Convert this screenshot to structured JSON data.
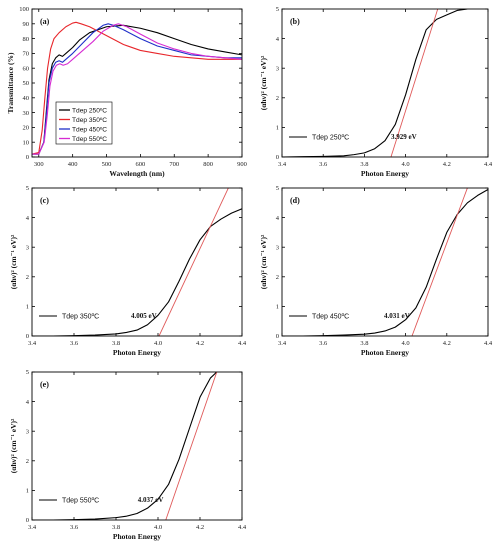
{
  "figure": {
    "background": "#ffffff"
  },
  "chart_data": [
    {
      "panel_label": "(a)",
      "type": "line",
      "xlabel": "Wavelength (nm)",
      "ylabel": "Transmittance (%)",
      "xlim": [
        280,
        900
      ],
      "ylim": [
        0,
        100
      ],
      "xticks": [
        300,
        400,
        500,
        600,
        700,
        800,
        900
      ],
      "yticks": [
        0,
        10,
        20,
        30,
        40,
        50,
        60,
        70,
        80,
        90,
        100
      ],
      "legend_position": "lower-left",
      "series": [
        {
          "name": "Tdep 250ºC",
          "color": "#000000",
          "x": [
            280,
            300,
            315,
            322,
            330,
            340,
            350,
            360,
            370,
            380,
            400,
            420,
            450,
            500,
            550,
            600,
            650,
            700,
            750,
            800,
            850,
            900
          ],
          "y": [
            2,
            2,
            10,
            30,
            52,
            63,
            67,
            69,
            68,
            70,
            74,
            79,
            84,
            88,
            89,
            87,
            84,
            80,
            76,
            73,
            71,
            69
          ]
        },
        {
          "name": "Tdep 350ºC",
          "color": "#e8262b",
          "x": [
            280,
            300,
            310,
            318,
            326,
            335,
            345,
            360,
            380,
            400,
            410,
            425,
            450,
            500,
            550,
            600,
            650,
            700,
            750,
            800,
            850,
            900
          ],
          "y": [
            2,
            3,
            18,
            40,
            60,
            73,
            80,
            84,
            88,
            90.5,
            91,
            90,
            88,
            82,
            76,
            72,
            70,
            68,
            67,
            66,
            66,
            66
          ]
        },
        {
          "name": "Tdep 450ºC",
          "color": "#1f2fc9",
          "x": [
            280,
            300,
            315,
            323,
            330,
            340,
            350,
            360,
            370,
            380,
            400,
            430,
            460,
            490,
            505,
            520,
            550,
            600,
            650,
            700,
            750,
            800,
            850,
            900
          ],
          "y": [
            2,
            2,
            10,
            30,
            50,
            60,
            64,
            65,
            64,
            66,
            70,
            77,
            84,
            89,
            90,
            89,
            86,
            80,
            75,
            72,
            69,
            68,
            67,
            67
          ]
        },
        {
          "name": "Tdep 550ºC",
          "color": "#d62bd2",
          "x": [
            280,
            300,
            316,
            325,
            333,
            342,
            352,
            362,
            372,
            385,
            400,
            430,
            460,
            490,
            520,
            535,
            560,
            600,
            650,
            700,
            750,
            800,
            850,
            900
          ],
          "y": [
            2,
            2,
            10,
            28,
            48,
            58,
            62,
            63,
            62,
            63,
            66,
            72,
            78,
            85,
            89,
            90,
            88,
            83,
            77,
            73,
            70,
            68,
            67,
            66
          ]
        }
      ]
    },
    {
      "panel_label": "(b)",
      "type": "line",
      "xlabel": "Photon Energy",
      "ylabel": "(αhν)² (cm⁻¹ eV)²",
      "xlim": [
        3.4,
        4.4
      ],
      "ylim": [
        0,
        5
      ],
      "xticks": [
        3.4,
        3.6,
        3.8,
        4.0,
        4.2,
        4.4
      ],
      "yticks": [
        0,
        1,
        2,
        3,
        4,
        5
      ],
      "legend_position": "lower-left",
      "annotation": "3.929 eV",
      "bandgap_eV": 3.929,
      "series": [
        {
          "name": "Tdep 250ºC",
          "color": "#000000",
          "x": [
            3.4,
            3.5,
            3.6,
            3.7,
            3.75,
            3.8,
            3.85,
            3.9,
            3.95,
            4.0,
            4.05,
            4.1,
            4.15,
            4.2,
            4.25,
            4.3
          ],
          "y": [
            0.0,
            0.01,
            0.02,
            0.04,
            0.08,
            0.14,
            0.28,
            0.55,
            1.1,
            2.1,
            3.3,
            4.3,
            4.65,
            4.8,
            4.95,
            5.0
          ]
        },
        {
          "name": "linear fit",
          "color": "#e05a5a",
          "x": [
            3.929,
            4.156
          ],
          "y": [
            0,
            5
          ]
        }
      ]
    },
    {
      "panel_label": "(c)",
      "type": "line",
      "xlabel": "Photon Energy",
      "ylabel": "(αhν)² (cm⁻¹ eV)²",
      "xlim": [
        3.4,
        4.4
      ],
      "ylim": [
        0,
        5
      ],
      "xticks": [
        3.4,
        3.6,
        3.8,
        4.0,
        4.2,
        4.4
      ],
      "yticks": [
        0,
        1,
        2,
        3,
        4,
        5
      ],
      "legend_position": "lower-left",
      "annotation": "4.005 eV",
      "bandgap_eV": 4.005,
      "series": [
        {
          "name": "Tdep 350ºC",
          "color": "#000000",
          "x": [
            3.4,
            3.5,
            3.6,
            3.7,
            3.8,
            3.85,
            3.9,
            3.95,
            4.0,
            4.05,
            4.1,
            4.15,
            4.2,
            4.25,
            4.3,
            4.35,
            4.4
          ],
          "y": [
            0.0,
            0.0,
            0.01,
            0.03,
            0.07,
            0.12,
            0.2,
            0.38,
            0.7,
            1.15,
            1.85,
            2.6,
            3.25,
            3.7,
            3.95,
            4.15,
            4.3
          ]
        },
        {
          "name": "linear fit",
          "color": "#e05a5a",
          "x": [
            4.005,
            4.335
          ],
          "y": [
            0,
            5
          ]
        }
      ]
    },
    {
      "panel_label": "(d)",
      "type": "line",
      "xlabel": "Photon Energy",
      "ylabel": "(αhν)² (cm⁻¹ eV)²",
      "xlim": [
        3.4,
        4.4
      ],
      "ylim": [
        0,
        5
      ],
      "xticks": [
        3.4,
        3.6,
        3.8,
        4.0,
        4.2,
        4.4
      ],
      "yticks": [
        0,
        1,
        2,
        3,
        4,
        5
      ],
      "legend_position": "lower-left",
      "annotation": "4.031 eV",
      "bandgap_eV": 4.031,
      "series": [
        {
          "name": "Tdep 450ºC",
          "color": "#000000",
          "x": [
            3.4,
            3.5,
            3.6,
            3.7,
            3.8,
            3.85,
            3.9,
            3.95,
            4.0,
            4.05,
            4.1,
            4.15,
            4.2,
            4.25,
            4.3,
            4.35,
            4.4
          ],
          "y": [
            0.0,
            0.0,
            0.01,
            0.03,
            0.06,
            0.1,
            0.17,
            0.3,
            0.55,
            0.95,
            1.65,
            2.6,
            3.5,
            4.1,
            4.5,
            4.75,
            4.95
          ]
        },
        {
          "name": "linear fit",
          "color": "#e05a5a",
          "x": [
            4.031,
            4.3
          ],
          "y": [
            0,
            5
          ]
        }
      ]
    },
    {
      "panel_label": "(e)",
      "type": "line",
      "xlabel": "Photon Energy",
      "ylabel": "(αhν)² (cm⁻¹ eV)²",
      "xlim": [
        3.4,
        4.4
      ],
      "ylim": [
        0,
        5
      ],
      "xticks": [
        3.4,
        3.6,
        3.8,
        4.0,
        4.2,
        4.4
      ],
      "yticks": [
        0,
        1,
        2,
        3,
        4,
        5
      ],
      "legend_position": "lower-left",
      "annotation": "4.037 eV",
      "bandgap_eV": 4.037,
      "series": [
        {
          "name": "Tdep 550ºC",
          "color": "#000000",
          "x": [
            3.4,
            3.5,
            3.6,
            3.7,
            3.8,
            3.85,
            3.9,
            3.95,
            4.0,
            4.05,
            4.1,
            4.15,
            4.2,
            4.25,
            4.28
          ],
          "y": [
            0.0,
            0.0,
            0.01,
            0.03,
            0.08,
            0.13,
            0.22,
            0.4,
            0.7,
            1.2,
            2.05,
            3.1,
            4.15,
            4.8,
            5.0
          ]
        },
        {
          "name": "linear fit",
          "color": "#e05a5a",
          "x": [
            4.037,
            4.28
          ],
          "y": [
            0,
            5
          ]
        }
      ]
    }
  ]
}
